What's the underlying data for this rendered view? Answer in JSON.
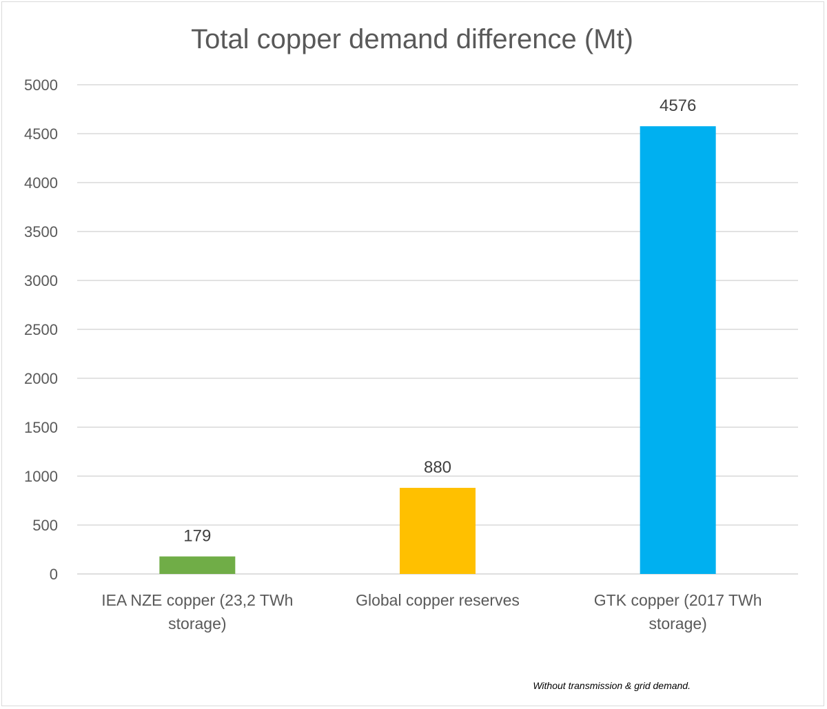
{
  "chart_data": {
    "type": "bar",
    "title": "Total copper demand difference (Mt)",
    "xlabel": "",
    "ylabel": "",
    "ylim": [
      0,
      5000
    ],
    "yticks": [
      0,
      500,
      1000,
      1500,
      2000,
      2500,
      3000,
      3500,
      4000,
      4500,
      5000
    ],
    "grid": true,
    "legend": "none",
    "categories": [
      [
        "IEA NZE copper  (23,2 TWh",
        "storage)"
      ],
      [
        "Global copper reserves"
      ],
      [
        "GTK copper (2017 TWh",
        "storage)"
      ]
    ],
    "values": [
      179,
      880,
      4576
    ],
    "data_labels": [
      "179",
      "880",
      "4576"
    ],
    "colors": [
      "#70ad47",
      "#ffc000",
      "#00b0f0"
    ],
    "note": "Without transmission & grid demand."
  }
}
